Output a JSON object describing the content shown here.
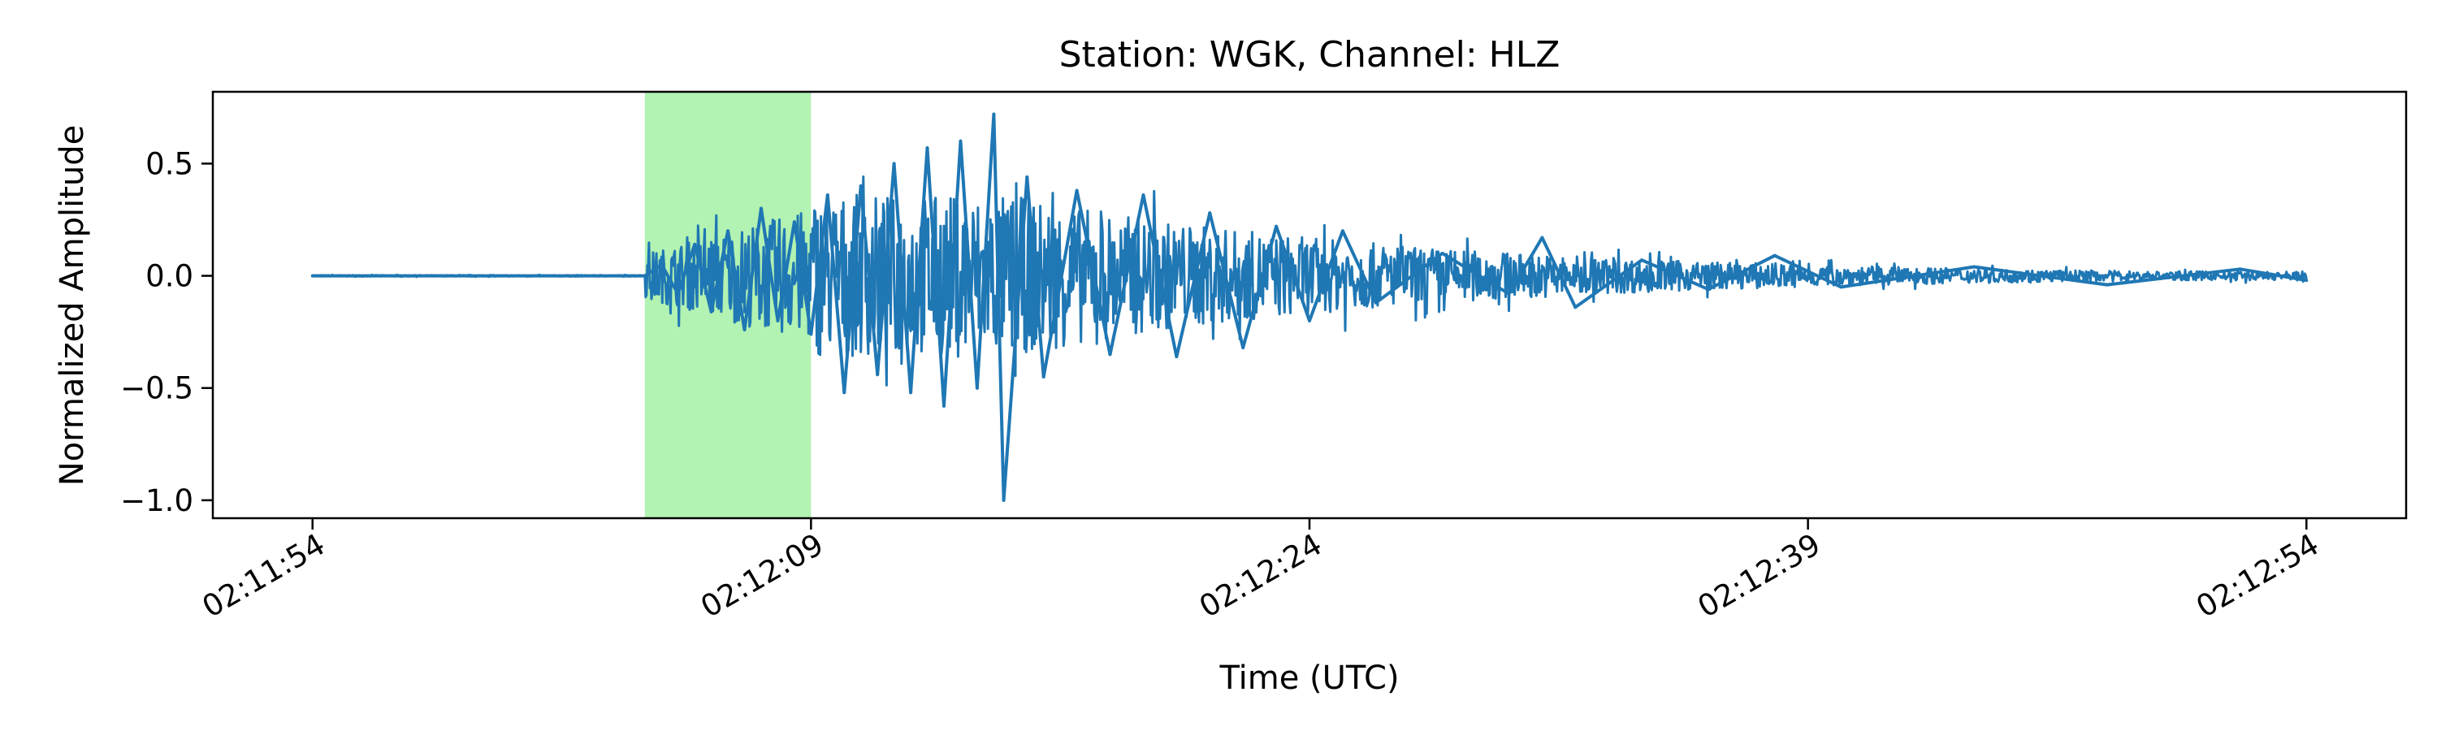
{
  "chart_data": {
    "type": "line",
    "title": "Station: WGK, Channel: HLZ",
    "xlabel": "Time (UTC)",
    "ylabel": "Normalized Amplitude",
    "x_start": "02:11:51",
    "x_end": "02:12:57",
    "ylim": [
      -1.08,
      0.82
    ],
    "x_ticks": [
      {
        "label": "02:11:54",
        "t": "02:11:54"
      },
      {
        "label": "02:12:09",
        "t": "02:12:09"
      },
      {
        "label": "02:12:24",
        "t": "02:12:24"
      },
      {
        "label": "02:12:39",
        "t": "02:12:39"
      },
      {
        "label": "02:12:54",
        "t": "02:12:54"
      }
    ],
    "y_ticks": [
      {
        "label": "0.5",
        "v": 0.5
      },
      {
        "label": "0.0",
        "v": 0.0
      },
      {
        "label": "−0.5",
        "v": -0.5
      },
      {
        "label": "−1.0",
        "v": -1.0
      }
    ],
    "highlight_window": {
      "start": "02:12:04",
      "end": "02:12:09",
      "color": "#b2f2b2"
    },
    "series": [
      {
        "color": "#1f77b4",
        "points": [
          [
            "02:11:54",
            0.0
          ],
          [
            "02:11:58",
            0.0
          ],
          [
            "02:12:02",
            0.0
          ],
          [
            "02:12:04",
            0.0
          ],
          [
            "02:12:04.5",
            0.05
          ],
          [
            "02:12:05",
            -0.08
          ],
          [
            "02:12:05.5",
            0.14
          ],
          [
            "02:12:06",
            -0.16
          ],
          [
            "02:12:06.5",
            0.2
          ],
          [
            "02:12:07",
            -0.24
          ],
          [
            "02:12:07.5",
            0.3
          ],
          [
            "02:12:08",
            -0.2
          ],
          [
            "02:12:08.5",
            0.24
          ],
          [
            "02:12:09",
            -0.26
          ],
          [
            "02:12:09.5",
            0.36
          ],
          [
            "02:12:10",
            -0.52
          ],
          [
            "02:12:10.5",
            0.4
          ],
          [
            "02:12:11",
            -0.44
          ],
          [
            "02:12:11.5",
            0.5
          ],
          [
            "02:12:12",
            -0.52
          ],
          [
            "02:12:12.5",
            0.57
          ],
          [
            "02:12:13",
            -0.58
          ],
          [
            "02:12:13.5",
            0.6
          ],
          [
            "02:12:14",
            -0.5
          ],
          [
            "02:12:14.5",
            0.72
          ],
          [
            "02:12:14.8",
            -1.0
          ],
          [
            "02:12:15.5",
            0.44
          ],
          [
            "02:12:16",
            -0.45
          ],
          [
            "02:12:17",
            0.38
          ],
          [
            "02:12:18",
            -0.35
          ],
          [
            "02:12:19",
            0.36
          ],
          [
            "02:12:20",
            -0.36
          ],
          [
            "02:12:21",
            0.28
          ],
          [
            "02:12:22",
            -0.32
          ],
          [
            "02:12:23",
            0.22
          ],
          [
            "02:12:24",
            -0.2
          ],
          [
            "02:12:25",
            0.2
          ],
          [
            "02:12:26",
            -0.12
          ],
          [
            "02:12:28",
            0.1
          ],
          [
            "02:12:30",
            -0.08
          ],
          [
            "02:12:31",
            0.17
          ],
          [
            "02:12:32",
            -0.14
          ],
          [
            "02:12:34",
            0.07
          ],
          [
            "02:12:36",
            -0.06
          ],
          [
            "02:12:38",
            0.09
          ],
          [
            "02:12:40",
            -0.05
          ],
          [
            "02:12:44",
            0.04
          ],
          [
            "02:12:48",
            -0.04
          ],
          [
            "02:12:52",
            0.03
          ],
          [
            "02:12:54",
            -0.02
          ]
        ]
      }
    ],
    "grid": false,
    "legend": "none"
  }
}
